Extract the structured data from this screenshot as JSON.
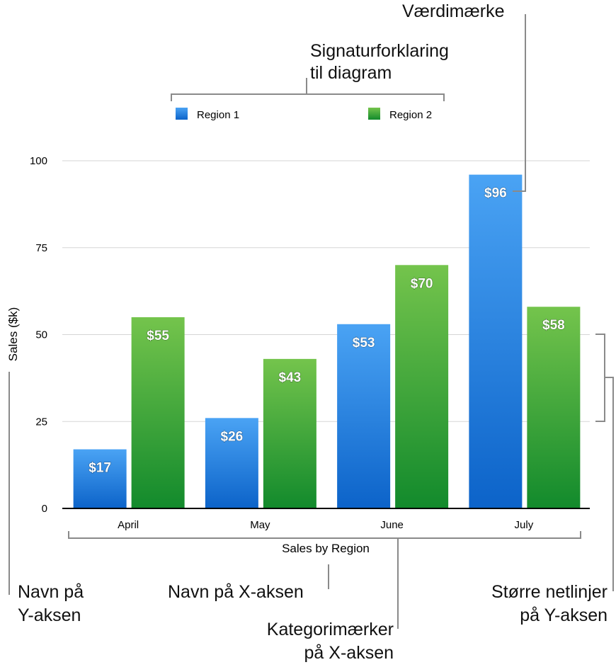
{
  "chart_data": {
    "type": "bar",
    "categories": [
      "April",
      "May",
      "June",
      "July"
    ],
    "series": [
      {
        "name": "Region 1",
        "values": [
          17,
          26,
          53,
          96
        ],
        "labels": [
          "$17",
          "$26",
          "$53",
          "$96"
        ],
        "color_top": "#4aa3f4",
        "color_bottom": "#0c63c9"
      },
      {
        "name": "Region 2",
        "values": [
          55,
          43,
          70,
          58
        ],
        "labels": [
          "$55",
          "$43",
          "$70",
          "$58"
        ],
        "color_top": "#74c44c",
        "color_bottom": "#128a2c"
      }
    ],
    "xlabel": "Sales by Region",
    "ylabel": "Sales ($k)",
    "ylim": [
      0,
      100
    ],
    "yticks": [
      "0",
      "25",
      "50",
      "75",
      "100"
    ],
    "ytick_values": [
      0,
      25,
      50,
      75,
      100
    ],
    "grid": true,
    "legend_placement": "top"
  },
  "callouts": {
    "value_label": "Værdimærke",
    "legend_line1": "Signaturforklaring",
    "legend_line2": "til diagram",
    "y_axis_name_line1": "Navn på",
    "y_axis_name_line2": "Y-aksen",
    "x_axis_name": "Navn på X-aksen",
    "category_labels_line1": "Kategorimærker",
    "category_labels_line2": "på X-aksen",
    "major_gridlines_line1": "Større netlinjer",
    "major_gridlines_line2": "på Y-aksen"
  }
}
